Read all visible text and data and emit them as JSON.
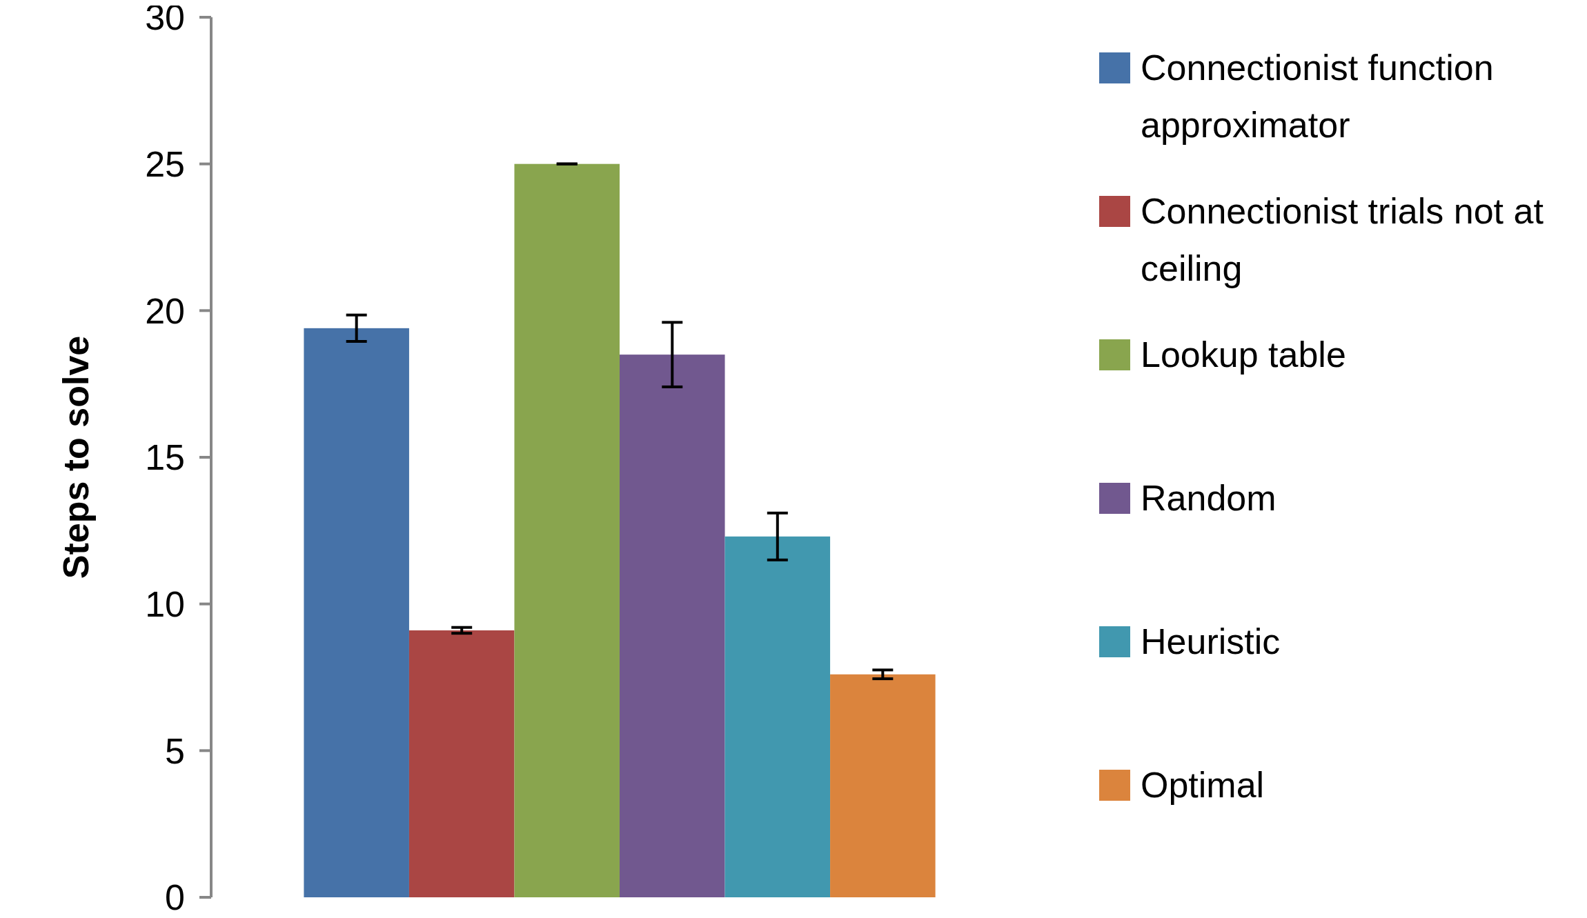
{
  "chart_data": {
    "type": "bar",
    "ylabel": "Steps to solve",
    "categories": [
      null
    ],
    "series": [
      {
        "name": "Connectionist function approximator",
        "color": "#4672a8",
        "values": [
          19.4
        ],
        "errors": [
          0.45
        ]
      },
      {
        "name": "Connectionist trials not at ceiling",
        "color": "#aa4644",
        "values": [
          9.1
        ],
        "errors": [
          0.1
        ]
      },
      {
        "name": "Lookup table",
        "color": "#89a54e",
        "values": [
          25
        ],
        "errors": [
          0
        ]
      },
      {
        "name": "Random",
        "color": "#71588f",
        "values": [
          18.5
        ],
        "errors": [
          1.1
        ]
      },
      {
        "name": "Heuristic",
        "color": "#4198af",
        "values": [
          12.3
        ],
        "errors": [
          0.8
        ]
      },
      {
        "name": "Optimal",
        "color": "#db843d",
        "values": [
          7.6
        ],
        "errors": [
          0.15
        ]
      }
    ],
    "ylim": [
      0,
      30
    ],
    "yticks": [
      0,
      5,
      10,
      15,
      20,
      25,
      30
    ],
    "grid": false,
    "legend": "right"
  }
}
